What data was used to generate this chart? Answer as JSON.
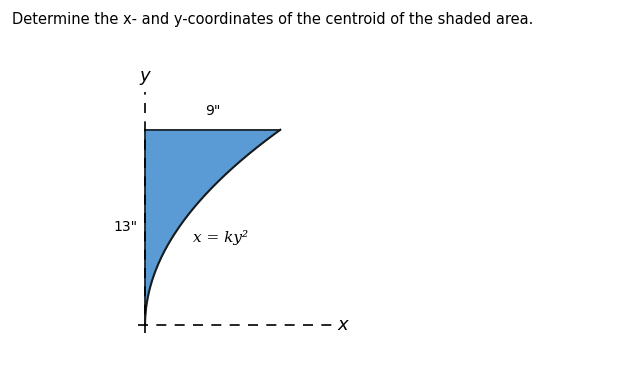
{
  "title": "Determine the x- and y-coordinates of the centroid of the shaded area.",
  "title_fontsize": 10.5,
  "bg_color": "#ffffff",
  "shape_fill": "#5b9bd5",
  "shape_edge": "#1a1a1a",
  "x_max": 9,
  "y_max": 13,
  "label_9": "9\"",
  "label_13": "13\"",
  "equation": "x = ky²",
  "shape_edge_lw": 1.2,
  "curve_lw": 1.5
}
